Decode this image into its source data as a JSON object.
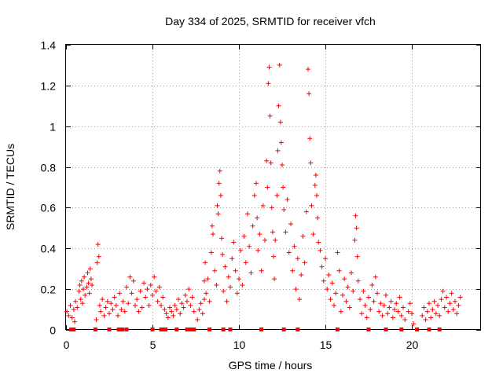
{
  "chart_data": {
    "type": "scatter",
    "title": "Day 334 of 2025, SRMTID for receiver vfch",
    "xlabel": "GPS time / hours",
    "ylabel": "SRMTID / TECUs",
    "xlim": [
      0,
      24
    ],
    "ylim": [
      0,
      1.4
    ],
    "xticks": [
      "0",
      "5",
      "10",
      "15",
      "20"
    ],
    "yticks": [
      "0",
      "0.2",
      "0.4",
      "0.6",
      "0.8",
      "1",
      "1.2",
      "1.4"
    ],
    "xtick_values": [
      0,
      5,
      10,
      15,
      20
    ],
    "ytick_values": [
      0,
      0.2,
      0.4,
      0.6,
      0.8,
      1.0,
      1.2,
      1.4
    ],
    "grid": true,
    "marker": "plus",
    "color": "#ff0000",
    "series": [
      {
        "name": "SRMTID",
        "points": [
          [
            0.05,
            0.09
          ],
          [
            0.15,
            0.07
          ],
          [
            0.25,
            0.12
          ],
          [
            0.35,
            0.06
          ],
          [
            0.45,
            0.1
          ],
          [
            0.5,
            0.04
          ],
          [
            0.55,
            0.14
          ],
          [
            0.65,
            0.11
          ],
          [
            0.75,
            0.19
          ],
          [
            0.8,
            0.22
          ],
          [
            0.85,
            0.15
          ],
          [
            0.9,
            0.24
          ],
          [
            0.95,
            0.13
          ],
          [
            1.0,
            0.2
          ],
          [
            1.05,
            0.26
          ],
          [
            1.1,
            0.17
          ],
          [
            1.2,
            0.21
          ],
          [
            1.25,
            0.28
          ],
          [
            1.3,
            0.23
          ],
          [
            1.35,
            0.18
          ],
          [
            1.4,
            0.3
          ],
          [
            1.45,
            0.25
          ],
          [
            1.5,
            0.22
          ],
          [
            1.75,
            0.05
          ],
          [
            1.8,
            0.33
          ],
          [
            1.85,
            0.42
          ],
          [
            1.9,
            0.36
          ],
          [
            1.95,
            0.12
          ],
          [
            2.0,
            0.09
          ],
          [
            2.1,
            0.15
          ],
          [
            2.2,
            0.07
          ],
          [
            2.3,
            0.11
          ],
          [
            2.4,
            0.14
          ],
          [
            2.5,
            0.08
          ],
          [
            2.6,
            0.13
          ],
          [
            2.7,
            0.1
          ],
          [
            2.8,
            0.16
          ],
          [
            2.9,
            0.12
          ],
          [
            3.0,
            0.07
          ],
          [
            3.1,
            0.18
          ],
          [
            3.2,
            0.1
          ],
          [
            3.3,
            0.14
          ],
          [
            3.4,
            0.09
          ],
          [
            3.5,
            0.21
          ],
          [
            3.6,
            0.13
          ],
          [
            3.7,
            0.26
          ],
          [
            3.8,
            0.18
          ],
          [
            3.9,
            0.24
          ],
          [
            4.0,
            0.12
          ],
          [
            4.1,
            0.15
          ],
          [
            4.2,
            0.09
          ],
          [
            4.3,
            0.19
          ],
          [
            4.4,
            0.11
          ],
          [
            4.5,
            0.23
          ],
          [
            4.6,
            0.16
          ],
          [
            4.7,
            0.2
          ],
          [
            4.8,
            0.12
          ],
          [
            4.9,
            0.22
          ],
          [
            5.0,
            0.17
          ],
          [
            5.1,
            0.26
          ],
          [
            5.2,
            0.19
          ],
          [
            5.3,
            0.14
          ],
          [
            5.4,
            0.21
          ],
          [
            5.5,
            0.12
          ],
          [
            5.6,
            0.16
          ],
          [
            5.7,
            0.1
          ],
          [
            5.8,
            0.08
          ],
          [
            5.9,
            0.06
          ],
          [
            6.0,
            0.11
          ],
          [
            6.1,
            0.09
          ],
          [
            6.2,
            0.07
          ],
          [
            6.3,
            0.12
          ],
          [
            6.4,
            0.1
          ],
          [
            6.5,
            0.15
          ],
          [
            6.6,
            0.08
          ],
          [
            6.7,
            0.13
          ],
          [
            6.8,
            0.11
          ],
          [
            6.9,
            0.17
          ],
          [
            7.0,
            0.14
          ],
          [
            7.1,
            0.2
          ],
          [
            7.2,
            0.12
          ],
          [
            7.3,
            0.16
          ],
          [
            7.4,
            0.09
          ],
          [
            7.6,
            0.05
          ],
          [
            7.7,
            0.1
          ],
          [
            7.8,
            0.13
          ],
          [
            7.9,
            0.08
          ],
          [
            8.0,
            0.15
          ],
          [
            8.0,
            0.24
          ],
          [
            8.05,
            0.33
          ],
          [
            8.1,
            0.18
          ],
          [
            8.2,
            0.25
          ],
          [
            8.3,
            0.14
          ],
          [
            8.4,
            0.38
          ],
          [
            8.45,
            0.51
          ],
          [
            8.5,
            0.47
          ],
          [
            8.6,
            0.29
          ],
          [
            8.7,
            0.22
          ],
          [
            8.75,
            0.61
          ],
          [
            8.8,
            0.57
          ],
          [
            8.85,
            0.72
          ],
          [
            8.9,
            0.78
          ],
          [
            8.95,
            0.66
          ],
          [
            9.0,
            0.45
          ],
          [
            9.05,
            0.37
          ],
          [
            9.1,
            0.19
          ],
          [
            9.2,
            0.31
          ],
          [
            9.3,
            0.14
          ],
          [
            9.4,
            0.26
          ],
          [
            9.5,
            0.21
          ],
          [
            9.6,
            0.35
          ],
          [
            9.7,
            0.43
          ],
          [
            9.8,
            0.29
          ],
          [
            9.9,
            0.18
          ],
          [
            10.0,
            0.25
          ],
          [
            10.1,
            0.39
          ],
          [
            10.2,
            0.22
          ],
          [
            10.3,
            0.46
          ],
          [
            10.4,
            0.33
          ],
          [
            10.5,
            0.57
          ],
          [
            10.6,
            0.41
          ],
          [
            10.7,
            0.28
          ],
          [
            10.8,
            0.51
          ],
          [
            10.9,
            0.66
          ],
          [
            11.0,
            0.72
          ],
          [
            11.05,
            0.55
          ],
          [
            11.1,
            0.39
          ],
          [
            11.2,
            0.47
          ],
          [
            11.3,
            0.29
          ],
          [
            11.4,
            0.61
          ],
          [
            11.5,
            0.44
          ],
          [
            11.6,
            0.83
          ],
          [
            11.65,
            0.7
          ],
          [
            11.7,
            1.21
          ],
          [
            11.75,
            1.29
          ],
          [
            11.8,
            1.05
          ],
          [
            11.85,
            0.82
          ],
          [
            11.9,
            0.6
          ],
          [
            11.95,
            0.48
          ],
          [
            12.0,
            0.36
          ],
          [
            12.05,
            0.25
          ],
          [
            12.1,
            0.44
          ],
          [
            12.2,
            0.66
          ],
          [
            12.25,
            0.88
          ],
          [
            12.3,
            1.1
          ],
          [
            12.35,
            1.3
          ],
          [
            12.4,
            1.02
          ],
          [
            12.45,
            0.92
          ],
          [
            12.5,
            0.81
          ],
          [
            12.55,
            0.7
          ],
          [
            12.6,
            0.59
          ],
          [
            12.7,
            0.48
          ],
          [
            12.8,
            0.64
          ],
          [
            12.9,
            0.38
          ],
          [
            13.0,
            0.52
          ],
          [
            13.1,
            0.29
          ],
          [
            13.2,
            0.41
          ],
          [
            13.3,
            0.2
          ],
          [
            13.4,
            0.35
          ],
          [
            13.5,
            0.15
          ],
          [
            13.6,
            0.27
          ],
          [
            13.7,
            0.46
          ],
          [
            13.8,
            0.33
          ],
          [
            13.9,
            0.58
          ],
          [
            14.0,
            1.28
          ],
          [
            14.05,
            1.16
          ],
          [
            14.1,
            0.94
          ],
          [
            14.15,
            0.82
          ],
          [
            14.2,
            0.61
          ],
          [
            14.3,
            0.47
          ],
          [
            14.4,
            0.71
          ],
          [
            14.45,
            0.76
          ],
          [
            14.5,
            0.66
          ],
          [
            14.55,
            0.55
          ],
          [
            14.6,
            0.43
          ],
          [
            14.7,
            0.39
          ],
          [
            14.8,
            0.31
          ],
          [
            14.9,
            0.24
          ],
          [
            15.0,
            0.35
          ],
          [
            15.1,
            0.2
          ],
          [
            15.2,
            0.27
          ],
          [
            15.3,
            0.15
          ],
          [
            15.4,
            0.23
          ],
          [
            15.5,
            0.12
          ],
          [
            15.6,
            0.18
          ],
          [
            15.7,
            0.38
          ],
          [
            15.8,
            0.29
          ],
          [
            15.9,
            0.09
          ],
          [
            16.0,
            0.17
          ],
          [
            16.1,
            0.25
          ],
          [
            16.2,
            0.14
          ],
          [
            16.3,
            0.21
          ],
          [
            16.4,
            0.11
          ],
          [
            16.5,
            0.28
          ],
          [
            16.6,
            0.19
          ],
          [
            16.7,
            0.44
          ],
          [
            16.75,
            0.56
          ],
          [
            16.8,
            0.5
          ],
          [
            16.85,
            0.36
          ],
          [
            16.9,
            0.24
          ],
          [
            17.0,
            0.15
          ],
          [
            17.1,
            0.08
          ],
          [
            17.2,
            0.19
          ],
          [
            17.3,
            0.12
          ],
          [
            17.4,
            0.06
          ],
          [
            17.5,
            0.16
          ],
          [
            17.6,
            0.1
          ],
          [
            17.7,
            0.22
          ],
          [
            17.8,
            0.14
          ],
          [
            17.9,
            0.26
          ],
          [
            18.0,
            0.18
          ],
          [
            18.1,
            0.09
          ],
          [
            18.2,
            0.13
          ],
          [
            18.3,
            0.07
          ],
          [
            18.4,
            0.12
          ],
          [
            18.5,
            0.17
          ],
          [
            18.6,
            0.08
          ],
          [
            18.7,
            0.11
          ],
          [
            18.8,
            0.14
          ],
          [
            18.9,
            0.06
          ],
          [
            19.0,
            0.1
          ],
          [
            19.1,
            0.13
          ],
          [
            19.2,
            0.09
          ],
          [
            19.3,
            0.16
          ],
          [
            19.4,
            0.07
          ],
          [
            19.5,
            0.11
          ],
          [
            19.6,
            0.05
          ],
          [
            19.8,
            0.09
          ],
          [
            19.9,
            0.13
          ],
          [
            20.0,
            0.08
          ],
          [
            20.1,
            0.03
          ],
          [
            20.6,
            0.07
          ],
          [
            20.7,
            0.11
          ],
          [
            20.8,
            0.05
          ],
          [
            20.9,
            0.09
          ],
          [
            21.0,
            0.13
          ],
          [
            21.1,
            0.06
          ],
          [
            21.2,
            0.1
          ],
          [
            21.3,
            0.14
          ],
          [
            21.4,
            0.08
          ],
          [
            21.5,
            0.12
          ],
          [
            21.6,
            0.07
          ],
          [
            21.7,
            0.15
          ],
          [
            21.8,
            0.19
          ],
          [
            21.9,
            0.11
          ],
          [
            22.0,
            0.16
          ],
          [
            22.1,
            0.09
          ],
          [
            22.2,
            0.13
          ],
          [
            22.3,
            0.18
          ],
          [
            22.4,
            0.1
          ],
          [
            22.5,
            0.14
          ],
          [
            22.6,
            0.08
          ],
          [
            22.7,
            0.12
          ],
          [
            22.8,
            0.16
          ]
        ]
      }
    ],
    "zero_markers": [
      0.3,
      0.45,
      1.7,
      2.5,
      3.05,
      3.25,
      3.5,
      5.0,
      5.5,
      5.6,
      5.75,
      6.4,
      7.0,
      7.2,
      7.4,
      8.3,
      9.1,
      9.5,
      11.3,
      12.6,
      13.4,
      15.7,
      17.5,
      18.5,
      19.4,
      20.3,
      21.0,
      21.6
    ]
  }
}
